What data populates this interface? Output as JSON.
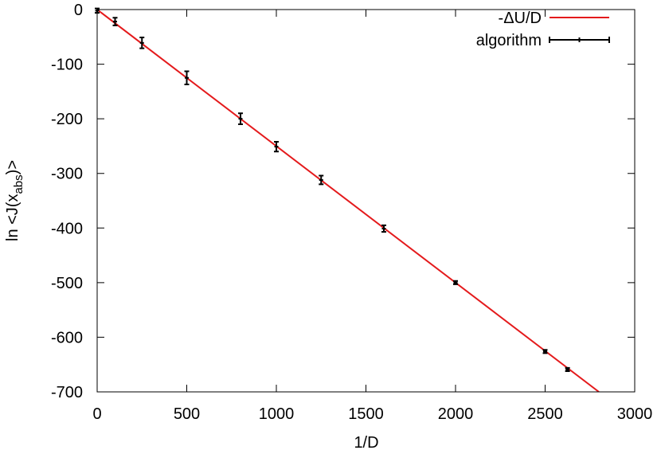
{
  "chart_data": {
    "type": "line",
    "xlabel": "1/D",
    "ylabel": "ln <J(x",
    "ylabel_sub": "abs",
    "ylabel_end": ")>",
    "xlim": [
      0,
      3000
    ],
    "xticks": [
      0,
      500,
      1000,
      1500,
      2000,
      2500,
      3000
    ],
    "ylim": [
      -700,
      0
    ],
    "yticks": [
      -700,
      -600,
      -500,
      -400,
      -300,
      -200,
      -100,
      0
    ],
    "legend": "top-right",
    "series": [
      {
        "name": "-ΔU/D",
        "color": "#e41a1c",
        "style": "line",
        "x": [
          0,
          2800
        ],
        "values": [
          0,
          -700
        ]
      },
      {
        "name": "algorithm",
        "color": "#000000",
        "style": "errorbar",
        "x": [
          0,
          100,
          250,
          500,
          800,
          1000,
          1250,
          1600,
          2000,
          2500,
          2625
        ],
        "values": [
          -2,
          -22,
          -61,
          -125,
          -200,
          -251,
          -312,
          -401,
          -500,
          -626,
          -659
        ],
        "errors": [
          4,
          7,
          10,
          12,
          10,
          9,
          8,
          6,
          3,
          3,
          3
        ]
      }
    ]
  }
}
